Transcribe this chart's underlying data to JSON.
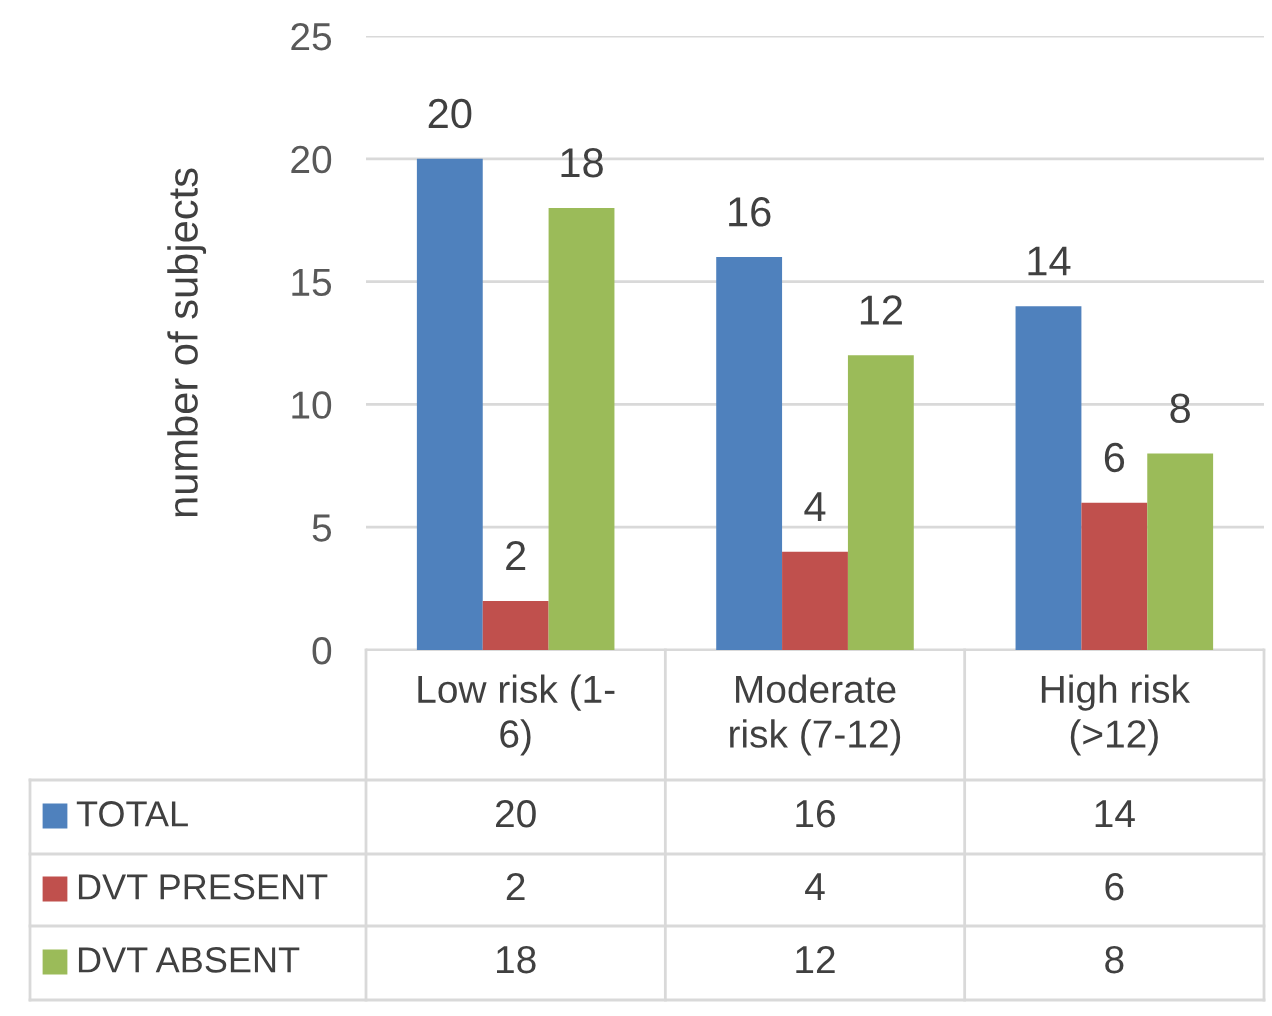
{
  "chart_data": {
    "type": "bar",
    "ylabel": "number of subjects",
    "categories": [
      "Low risk (1-\n6)",
      "Moderate\nrisk (7-12)",
      "High risk\n(>12)"
    ],
    "series": [
      {
        "name": "TOTAL",
        "color": "#4f81bd",
        "values": [
          20,
          16,
          14
        ]
      },
      {
        "name": "DVT PRESENT",
        "color": "#c0504d",
        "values": [
          2,
          4,
          6
        ]
      },
      {
        "name": "DVT ABSENT",
        "color": "#9bbb59",
        "values": [
          18,
          12,
          8
        ]
      }
    ],
    "annotations": [
      "20",
      "2",
      "18",
      "16",
      "4",
      "12",
      "14",
      "6",
      "8"
    ],
    "ylim": [
      0,
      25
    ],
    "yticks": [
      0,
      5,
      10,
      15,
      20,
      25
    ],
    "grid": "y",
    "data_labels": true,
    "legend": "bottom"
  }
}
